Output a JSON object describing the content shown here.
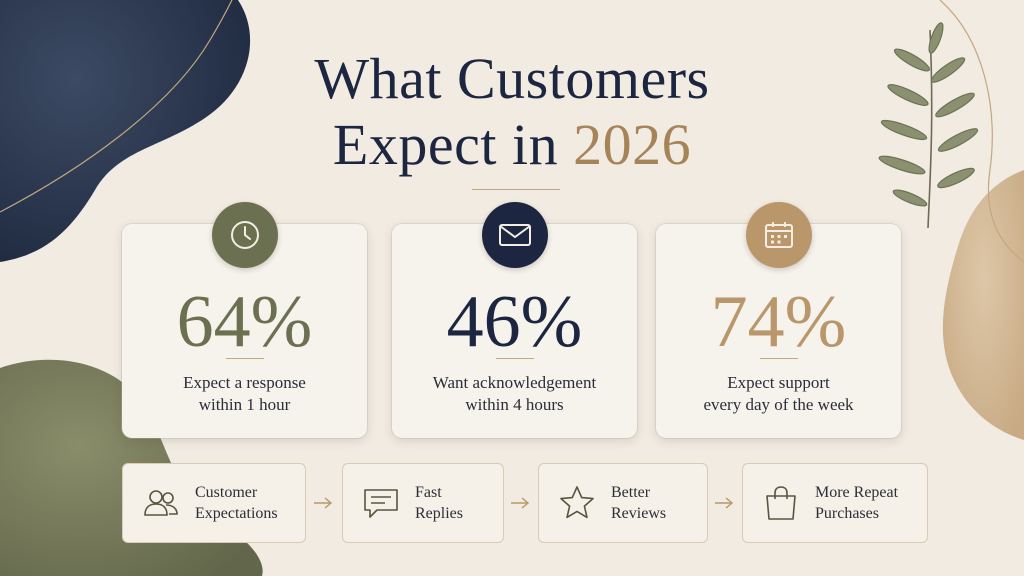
{
  "title": {
    "line1": "What Customers",
    "line2_prefix": "Expect in ",
    "line2_accent": "2026"
  },
  "colors": {
    "navy": "#1c2640",
    "olive": "#6b7150",
    "tan": "#b9976b",
    "gold": "#a78458",
    "background": "#f1ebe2"
  },
  "stats": [
    {
      "icon": "clock-icon",
      "value": "64%",
      "caption": "Expect a response\nwithin 1 hour"
    },
    {
      "icon": "envelope-icon",
      "value": "46%",
      "caption": "Want acknowledgement\nwithin 4 hours"
    },
    {
      "icon": "calendar-icon",
      "value": "74%",
      "caption": "Expect support\nevery day of the week"
    }
  ],
  "flow": [
    {
      "icon": "people-icon",
      "label": "Customer\nExpectations"
    },
    {
      "icon": "chat-icon",
      "label": "Fast\nReplies"
    },
    {
      "icon": "star-icon",
      "label": "Better\nReviews"
    },
    {
      "icon": "shopping-bag-icon",
      "label": "More Repeat\nPurchases"
    }
  ]
}
